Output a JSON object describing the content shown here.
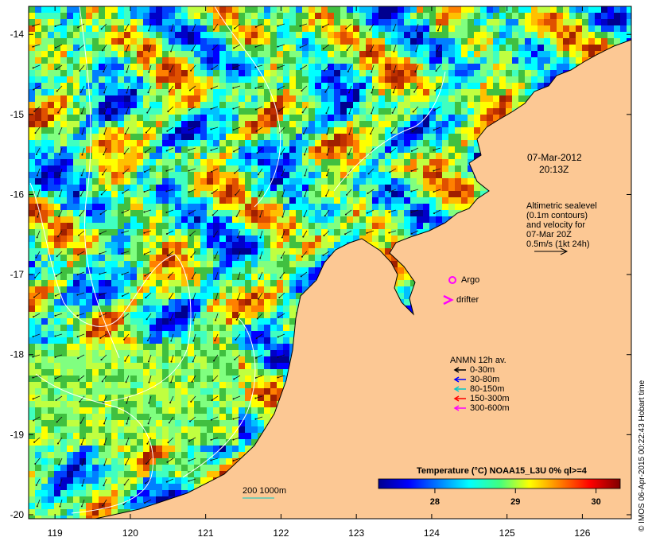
{
  "map": {
    "lon_ticks": [
      "119",
      "120",
      "121",
      "122",
      "123",
      "124",
      "125",
      "126"
    ],
    "lat_ticks": [
      "-14",
      "-15",
      "-16",
      "-17",
      "-18",
      "-19",
      "-20"
    ],
    "lon_range": [
      118.65,
      126.65
    ],
    "lat_range": [
      -20.05,
      -13.65
    ],
    "land_color": "#fcc894",
    "timestamp_date": "07-Mar-2012",
    "timestamp_time": "20:13Z",
    "sealevel_note": [
      "Altimetric sealevel",
      "(0.1m contours)",
      "and velocity for",
      "07-Mar 20Z",
      "0.5m/s (1kt 24h)"
    ],
    "argo_label": "Argo",
    "drifter_label": "drifter",
    "anmn": {
      "title": "ANMN 12h av.",
      "items": [
        {
          "label": "0-30m",
          "color": "#000000"
        },
        {
          "label": "30-80m",
          "color": "#0000ff"
        },
        {
          "label": "80-150m",
          "color": "#00c8c8"
        },
        {
          "label": "150-300m",
          "color": "#ff0000"
        },
        {
          "label": "300-600m",
          "color": "#ff00ff"
        }
      ]
    },
    "depth_contours_label": "200  1000m",
    "colorbar": {
      "title": "Temperature (°C) NOAA15_L3U 0% ql>=4",
      "min": 27.3,
      "max": 30.3,
      "ticks": [
        "28",
        "29",
        "30"
      ],
      "tick_values": [
        28,
        29,
        30
      ]
    },
    "credit": "© IMOS 06-Apr-2015 00:22:43 Hobart time"
  }
}
